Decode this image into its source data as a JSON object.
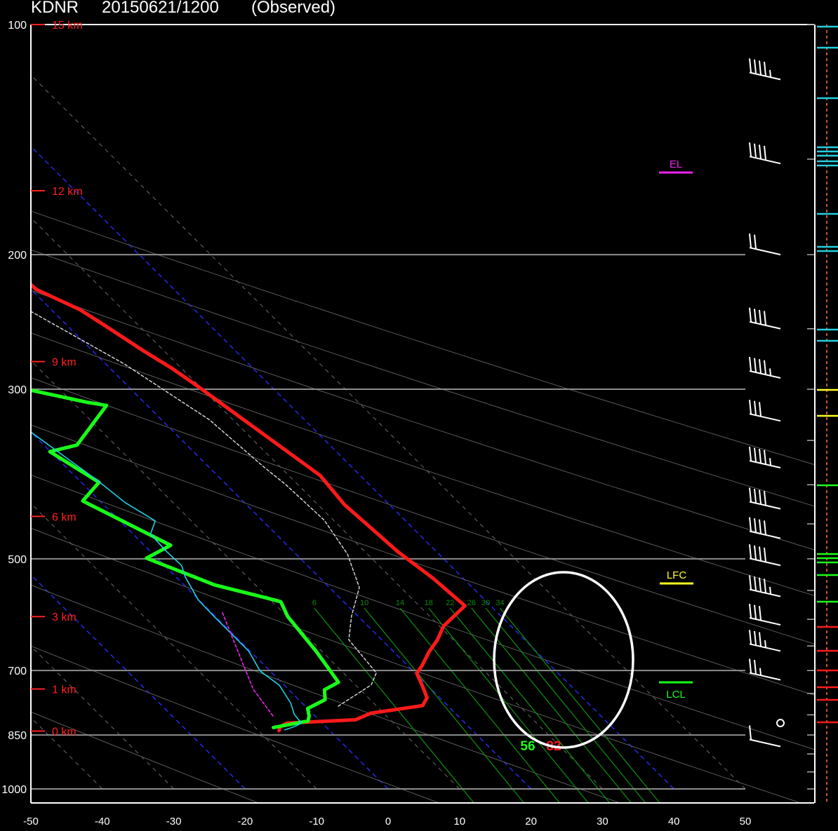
{
  "header": {
    "station": "KDNR",
    "datetime": "20150621/1200",
    "status": "(Observed)"
  },
  "colors": {
    "temperature": "#ff1a1a",
    "dewpoint": "#19ff19",
    "wetbulb": "#22cfe0",
    "parcel": "#dddddd",
    "virtual_parcel": "#ee22ee",
    "height_labels": "#ff2020",
    "isobars": "#8c8c8c",
    "isotherm_ref": "#2a2aff",
    "mixing_ratio": "#0c8a0c",
    "annotation_circle": "#ffffff",
    "el": "#ee22ee",
    "lfc": "#ffff22",
    "lcl": "#19ff19"
  },
  "chart_data": {
    "type": "line",
    "title": "KDNR   20150621/1200  (Observed)",
    "xlabel": "",
    "ylabel": "",
    "xlim": [
      -50,
      50
    ],
    "ylim": [
      1000,
      100
    ],
    "y_scale": "log-pressure",
    "x_ticks": [
      -50,
      -40,
      -30,
      -20,
      -10,
      0,
      10,
      20,
      30,
      40,
      50
    ],
    "pressure_labels": [
      100,
      200,
      300,
      500,
      700,
      850,
      1000
    ],
    "height_labels": [
      {
        "label": "15 km",
        "p": 100
      },
      {
        "label": "12 km",
        "p": 165
      },
      {
        "label": "9 km",
        "p": 276
      },
      {
        "label": "6 km",
        "p": 440
      },
      {
        "label": "3 km",
        "p": 595
      },
      {
        "label": "1 km",
        "p": 740
      },
      {
        "label": "0 km",
        "p": 840
      }
    ],
    "mixing_ratio_labels": [
      {
        "label": "6",
        "x": 15
      },
      {
        "label": "10",
        "x": 22
      },
      {
        "label": "14",
        "x": 27
      },
      {
        "label": "18",
        "x": 31
      },
      {
        "label": "22",
        "x": 34
      },
      {
        "label": "26",
        "x": 37
      },
      {
        "label": "30",
        "x": 39
      },
      {
        "label": "34",
        "x": 41
      }
    ],
    "surface_labels": {
      "dewpoint": "56",
      "temperature": "82"
    },
    "levels": {
      "EL": "EL",
      "LFC": "LFC",
      "LCL": "LCL"
    },
    "series": [
      {
        "values": [
          [
            5.85,
            100
          ],
          [
            5.86,
            102
          ],
          [
            5.77,
            106
          ],
          [
            6.2,
            112
          ],
          [
            8,
            121
          ],
          [
            8.6,
            131
          ],
          [
            10.3,
            143
          ],
          [
            14,
            149
          ],
          [
            14.1,
            152
          ],
          [
            15.8,
            157
          ],
          [
            18.6,
            169
          ],
          [
            19.3,
            182
          ],
          [
            18.8,
            189
          ],
          [
            20.5,
            207
          ],
          [
            20.7,
            222
          ],
          [
            24,
            236
          ],
          [
            25.2,
            247
          ],
          [
            27.1,
            267
          ],
          [
            28.7,
            282
          ],
          [
            29.8,
            298
          ],
          [
            30.7,
            314
          ],
          [
            33.3,
            365
          ],
          [
            34.4,
            389
          ],
          [
            33.7,
            425
          ],
          [
            34.1,
            451
          ],
          [
            34.6,
            490
          ],
          [
            35.8,
            530
          ],
          [
            36.4,
            576
          ],
          [
            30.6,
            612
          ],
          [
            27.8,
            638
          ],
          [
            24.9,
            662
          ],
          [
            22,
            690
          ],
          [
            20.2,
            706
          ],
          [
            19.2,
            734
          ],
          [
            18.2,
            760
          ],
          [
            16.5,
            778
          ],
          [
            8.2,
            796
          ],
          [
            5.12,
            812
          ],
          [
            -4.9,
            820
          ],
          [
            -6.4,
            829
          ],
          [
            -7.1,
            839
          ]
        ]
      },
      {
        "values": [
          [
            -28.5,
            100
          ],
          [
            -28.9,
            103
          ],
          [
            -28.9,
            108
          ],
          [
            -29.6,
            124
          ],
          [
            -29.4,
            139
          ],
          [
            -28.9,
            148
          ],
          [
            -26.6,
            159
          ],
          [
            -25.6,
            166
          ],
          [
            -25.2,
            178
          ],
          [
            -23.4,
            186
          ],
          [
            -21.3,
            193
          ],
          [
            -19.5,
            209
          ],
          [
            -13.3,
            226
          ],
          [
            -12.9,
            258
          ],
          [
            -5.1,
            268
          ],
          [
            -1,
            283
          ],
          [
            3.1,
            296
          ],
          [
            12,
            312
          ],
          [
            14.3,
            315
          ],
          [
            4.6,
            355
          ],
          [
            -0.1,
            362
          ],
          [
            2.5,
            397
          ],
          [
            -2.4,
            420
          ],
          [
            3.7,
            480
          ],
          [
            -1.5,
            499
          ],
          [
            4.3,
            541
          ],
          [
            9.6,
            562
          ],
          [
            11.2,
            569
          ],
          [
            10.1,
            595
          ],
          [
            9.2,
            661
          ],
          [
            8,
            725
          ],
          [
            4.97,
            742
          ],
          [
            3.7,
            764
          ],
          [
            0,
            785
          ],
          [
            -0.8,
            802
          ],
          [
            -1.7,
            815
          ],
          [
            -7.44,
            831
          ]
        ]
      },
      {
        "values": [
          [
            -7.5,
            236
          ],
          [
            -5.9,
            256
          ],
          [
            -5.8,
            283
          ],
          [
            -4.1,
            292
          ],
          [
            -2.6,
            312
          ],
          [
            -0.6,
            330
          ],
          [
            2.5,
            394
          ],
          [
            3.3,
            422
          ],
          [
            4.95,
            446
          ],
          [
            2.45,
            464
          ],
          [
            2.25,
            488
          ],
          [
            2.4,
            510
          ],
          [
            1.3,
            528
          ],
          [
            -0.1,
            566
          ],
          [
            -0.2,
            595
          ],
          [
            -0.2,
            660
          ],
          [
            -1.4,
            701
          ],
          [
            -0.7,
            732
          ],
          [
            -1.6,
            772
          ],
          [
            -2.7,
            799
          ],
          [
            -2.9,
            820
          ],
          [
            -4.4,
            829
          ],
          [
            -6.2,
            837
          ]
        ]
      },
      {
        "values": [
          [
            -12.5,
            100
          ],
          [
            -2.8,
            151
          ],
          [
            4.2,
            181
          ],
          [
            14,
            219
          ],
          [
            22.6,
            278
          ],
          [
            26.7,
            329
          ],
          [
            27.7,
            379
          ],
          [
            28.3,
            400
          ],
          [
            28.7,
            445
          ],
          [
            27.2,
            493
          ],
          [
            24.2,
            545
          ],
          [
            19.1,
            594
          ],
          [
            15.4,
            638
          ],
          [
            14.6,
            705
          ],
          [
            12.2,
            731
          ],
          [
            4.2,
            782
          ]
        ]
      },
      {
        "values": [
          [
            1.5,
            588
          ],
          [
            -4.9,
            740
          ],
          [
            -5.9,
            803
          ]
        ]
      }
    ],
    "wind_barbs_kt": [
      {
        "p": 118,
        "speed": 35
      },
      {
        "p": 152,
        "speed": 40
      },
      {
        "p": 200,
        "speed": 20
      },
      {
        "p": 250,
        "speed": 40
      },
      {
        "p": 290,
        "speed": 35
      },
      {
        "p": 330,
        "speed": 30
      },
      {
        "p": 380,
        "speed": 35
      },
      {
        "p": 430,
        "speed": 40
      },
      {
        "p": 470,
        "speed": 40
      },
      {
        "p": 510,
        "speed": 40
      },
      {
        "p": 560,
        "speed": 35
      },
      {
        "p": 610,
        "speed": 30
      },
      {
        "p": 660,
        "speed": 25
      },
      {
        "p": 720,
        "speed": 15
      },
      {
        "p": 820,
        "speed": 0
      },
      {
        "p": 880,
        "speed": 10
      }
    ],
    "legend": "none",
    "grid": true
  }
}
